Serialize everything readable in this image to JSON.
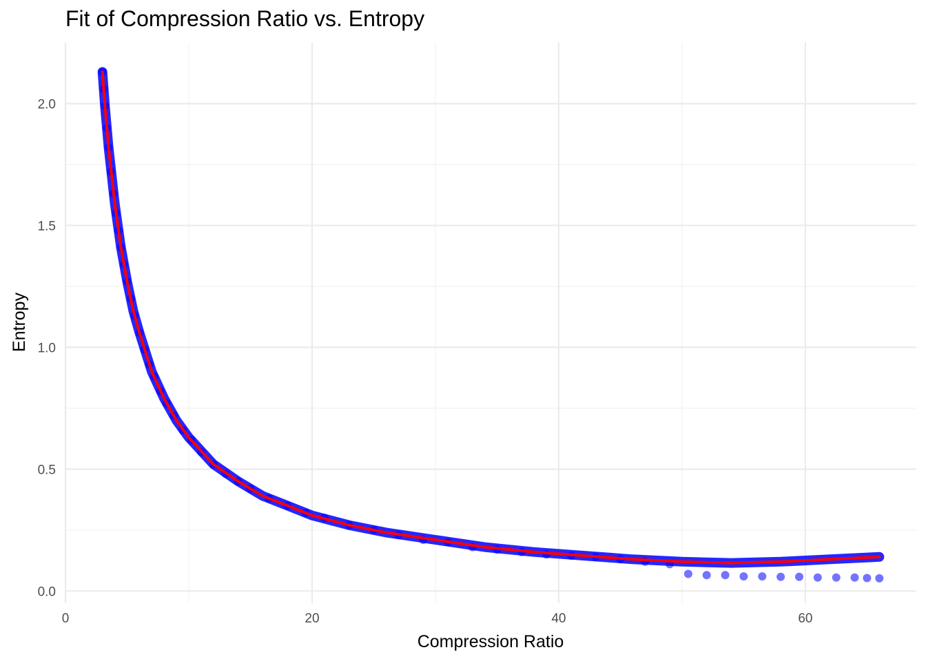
{
  "chart_data": {
    "type": "scatter",
    "title": "Fit of Compression Ratio vs. Entropy",
    "xlabel": "Compression Ratio",
    "ylabel": "Entropy",
    "xlim": [
      0,
      69
    ],
    "ylim": [
      -0.05,
      2.25
    ],
    "x_ticks": [
      0,
      20,
      40,
      60
    ],
    "x_tick_labels": [
      "0",
      "20",
      "40",
      "60"
    ],
    "y_ticks": [
      0.0,
      0.5,
      1.0,
      1.5,
      2.0
    ],
    "y_tick_labels": [
      "0.0",
      "0.5",
      "1.0",
      "1.5",
      "2.0"
    ],
    "grid": true,
    "legend": "none",
    "colors": {
      "points": "#0000ff",
      "fit_line": "#ff0000"
    },
    "series": [
      {
        "kind": "points",
        "points": [
          [
            3.0,
            2.13
          ],
          [
            3.1,
            2.06
          ],
          [
            3.2,
            1.99
          ],
          [
            3.35,
            1.9
          ],
          [
            3.5,
            1.82
          ],
          [
            3.7,
            1.72
          ],
          [
            3.9,
            1.63
          ],
          [
            4.1,
            1.55
          ],
          [
            4.3,
            1.48
          ],
          [
            4.5,
            1.41
          ],
          [
            4.75,
            1.34
          ],
          [
            5.0,
            1.27
          ],
          [
            5.3,
            1.2
          ],
          [
            5.6,
            1.13
          ],
          [
            6.0,
            1.06
          ],
          [
            6.4,
            0.99
          ],
          [
            6.8,
            0.93
          ],
          [
            7.2,
            0.88
          ],
          [
            7.7,
            0.82
          ],
          [
            8.2,
            0.77
          ],
          [
            8.8,
            0.72
          ],
          [
            9.5,
            0.66
          ],
          [
            10.2,
            0.62
          ],
          [
            11.0,
            0.57
          ],
          [
            12.0,
            0.52
          ],
          [
            13.0,
            0.48
          ],
          [
            14.0,
            0.45
          ],
          [
            15.0,
            0.42
          ],
          [
            16.5,
            0.38
          ],
          [
            18.0,
            0.35
          ],
          [
            19.5,
            0.32
          ],
          [
            21.0,
            0.3
          ],
          [
            23.0,
            0.27
          ],
          [
            25.0,
            0.25
          ],
          [
            27.0,
            0.23
          ],
          [
            29.0,
            0.21
          ],
          [
            31.0,
            0.2
          ],
          [
            33.0,
            0.18
          ],
          [
            35.0,
            0.17
          ],
          [
            37.0,
            0.16
          ],
          [
            39.0,
            0.15
          ],
          [
            41.0,
            0.145
          ],
          [
            43.0,
            0.14
          ],
          [
            45.0,
            0.13
          ],
          [
            47.0,
            0.12
          ],
          [
            49.0,
            0.11
          ],
          [
            50.5,
            0.07
          ],
          [
            52.0,
            0.065
          ],
          [
            53.5,
            0.065
          ],
          [
            55.0,
            0.06
          ],
          [
            56.5,
            0.06
          ],
          [
            58.0,
            0.058
          ],
          [
            59.5,
            0.058
          ],
          [
            61.0,
            0.055
          ],
          [
            62.5,
            0.055
          ],
          [
            64.0,
            0.055
          ],
          [
            65.0,
            0.053
          ],
          [
            66.0,
            0.052
          ]
        ]
      },
      {
        "kind": "line",
        "points": [
          [
            3.0,
            2.13
          ],
          [
            3.2,
            1.99
          ],
          [
            3.5,
            1.82
          ],
          [
            4.0,
            1.59
          ],
          [
            4.5,
            1.41
          ],
          [
            5.0,
            1.27
          ],
          [
            5.5,
            1.15
          ],
          [
            6.0,
            1.06
          ],
          [
            7.0,
            0.9
          ],
          [
            8.0,
            0.79
          ],
          [
            9.0,
            0.7
          ],
          [
            10.0,
            0.63
          ],
          [
            12.0,
            0.52
          ],
          [
            14.0,
            0.45
          ],
          [
            16.0,
            0.39
          ],
          [
            18.0,
            0.35
          ],
          [
            20.0,
            0.31
          ],
          [
            23.0,
            0.27
          ],
          [
            26.0,
            0.24
          ],
          [
            30.0,
            0.21
          ],
          [
            34.0,
            0.18
          ],
          [
            38.0,
            0.16
          ],
          [
            42.0,
            0.145
          ],
          [
            46.0,
            0.13
          ],
          [
            50.0,
            0.12
          ],
          [
            54.0,
            0.115
          ],
          [
            58.0,
            0.12
          ],
          [
            62.0,
            0.13
          ],
          [
            66.0,
            0.14
          ]
        ]
      }
    ]
  }
}
